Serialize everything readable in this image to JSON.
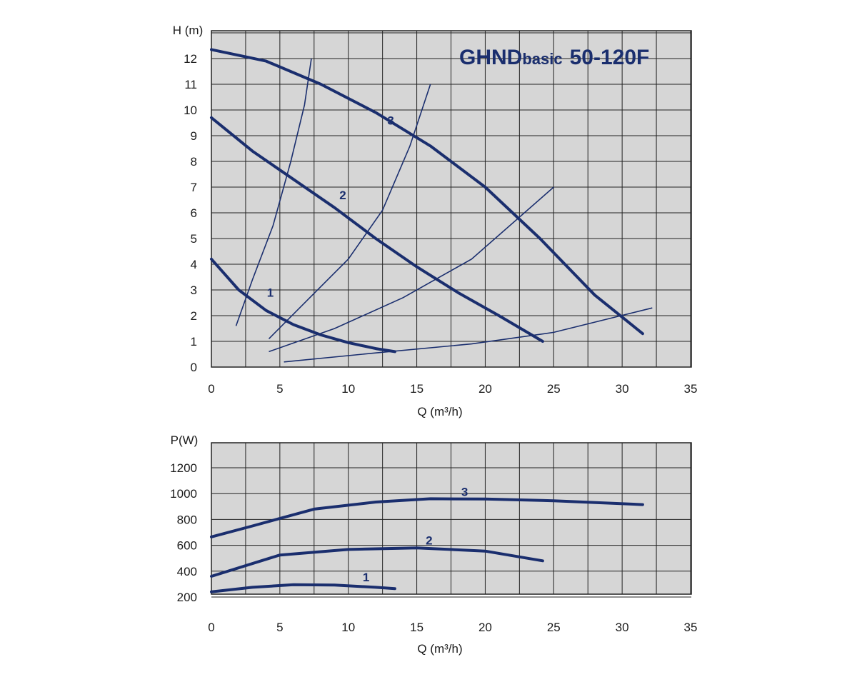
{
  "colors": {
    "plot_bg": "#d6d6d6",
    "grid": "#222222",
    "curve": "#1a2e6e"
  },
  "chart_data": [
    {
      "type": "line",
      "id": "head",
      "title": "GHND",
      "title_suffix": "basic",
      "title_model": "50-120F",
      "xlabel": "Q (m³/h)",
      "ylabel": "H (m)",
      "xlim": [
        0,
        35
      ],
      "ylim": [
        0,
        13
      ],
      "x_ticks": [
        0,
        5,
        10,
        15,
        20,
        25,
        30,
        35
      ],
      "y_ticks": [
        0,
        1,
        2,
        3,
        4,
        5,
        6,
        7,
        8,
        9,
        10,
        11,
        12
      ],
      "grid": true,
      "series": [
        {
          "name": "1",
          "points": [
            [
              0,
              4.2
            ],
            [
              2,
              3.0
            ],
            [
              4,
              2.2
            ],
            [
              6,
              1.65
            ],
            [
              8,
              1.25
            ],
            [
              10,
              0.95
            ],
            [
              12,
              0.72
            ],
            [
              13.4,
              0.6
            ]
          ]
        },
        {
          "name": "2",
          "points": [
            [
              0,
              9.7
            ],
            [
              3,
              8.4
            ],
            [
              6,
              7.3
            ],
            [
              9,
              6.2
            ],
            [
              12,
              5.0
            ],
            [
              15,
              3.9
            ],
            [
              18,
              2.9
            ],
            [
              21,
              2.0
            ],
            [
              24.2,
              1.0
            ]
          ]
        },
        {
          "name": "3",
          "points": [
            [
              0,
              12.35
            ],
            [
              4,
              11.9
            ],
            [
              8,
              11.0
            ],
            [
              12,
              9.9
            ],
            [
              16,
              8.6
            ],
            [
              20,
              7.0
            ],
            [
              24,
              5.0
            ],
            [
              28,
              2.8
            ],
            [
              31.5,
              1.3
            ]
          ]
        }
      ],
      "system_curves": [
        [
          [
            1.8,
            1.6
          ],
          [
            3,
            3.4
          ],
          [
            4.5,
            5.5
          ],
          [
            5.8,
            8.0
          ],
          [
            6.8,
            10.2
          ],
          [
            7.3,
            12.0
          ]
        ],
        [
          [
            4.2,
            1.1
          ],
          [
            7,
            2.6
          ],
          [
            10,
            4.2
          ],
          [
            12.5,
            6.1
          ],
          [
            14.5,
            8.6
          ],
          [
            16,
            11.0
          ]
        ],
        [
          [
            4.2,
            0.6
          ],
          [
            9,
            1.5
          ],
          [
            14,
            2.7
          ],
          [
            19,
            4.2
          ],
          [
            25,
            7.0
          ]
        ],
        [
          [
            5.3,
            0.2
          ],
          [
            12,
            0.55
          ],
          [
            19,
            0.9
          ],
          [
            25,
            1.35
          ],
          [
            32.2,
            2.3
          ]
        ]
      ],
      "curve_label_positions": [
        [
          4.3,
          2.9
        ],
        [
          9.6,
          6.7
        ],
        [
          13.1,
          9.6
        ]
      ]
    },
    {
      "type": "line",
      "id": "power",
      "title": "",
      "xlabel": "Q (m³/h)",
      "ylabel": "P(W)",
      "xlim": [
        0,
        35
      ],
      "ylim": [
        100,
        1400
      ],
      "x_ticks": [
        0,
        5,
        10,
        15,
        20,
        25,
        30,
        35
      ],
      "y_ticks": [
        200,
        400,
        600,
        800,
        1000,
        1200
      ],
      "grid": true,
      "series": [
        {
          "name": "1",
          "points": [
            [
              0,
              240
            ],
            [
              3,
              275
            ],
            [
              6,
              295
            ],
            [
              9,
              292
            ],
            [
              12,
              275
            ],
            [
              13.4,
              265
            ]
          ]
        },
        {
          "name": "2",
          "points": [
            [
              0,
              360
            ],
            [
              5,
              525
            ],
            [
              10,
              568
            ],
            [
              15,
              580
            ],
            [
              20,
              555
            ],
            [
              24.2,
              480
            ]
          ]
        },
        {
          "name": "3",
          "points": [
            [
              0,
              665
            ],
            [
              3,
              750
            ],
            [
              7.5,
              880
            ],
            [
              12,
              935
            ],
            [
              16,
              960
            ],
            [
              20,
              958
            ],
            [
              25,
              945
            ],
            [
              31.5,
              915
            ]
          ]
        }
      ],
      "curve_label_positions": [
        [
          11.3,
          355
        ],
        [
          15.9,
          640
        ],
        [
          18.5,
          1015
        ]
      ]
    }
  ]
}
